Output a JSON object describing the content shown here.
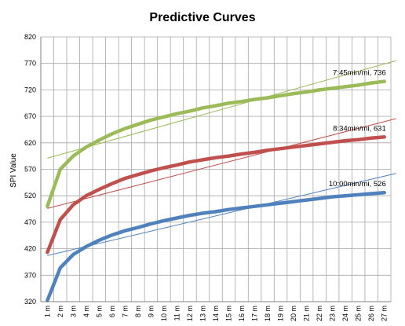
{
  "chart_data": {
    "type": "line",
    "title": "Predictive Curves",
    "xlabel": "",
    "ylabel": "SPI Value",
    "categories": [
      "1 m",
      "2 m",
      "3 m",
      "4 m",
      "5 m",
      "6 m",
      "7 m",
      "8 m",
      "9 m",
      "10 m",
      "11 m",
      "12 m",
      "13 m",
      "14 m",
      "15 m",
      "16 m",
      "17 m",
      "18 m",
      "19 m",
      "20 m",
      "21 m",
      "22 m",
      "23 m",
      "24 m",
      "25 m",
      "26 m",
      "27 m"
    ],
    "ylim": [
      320,
      820
    ],
    "yticks": [
      320,
      370,
      420,
      470,
      520,
      570,
      620,
      670,
      720,
      770,
      820
    ],
    "grid": true,
    "series": [
      {
        "color": "#9bbb59",
        "values": [
          500,
          570,
          595,
          612,
          625,
          637,
          647,
          655,
          663,
          669,
          675,
          680,
          686,
          690,
          695,
          698,
          702,
          705,
          709,
          713,
          716,
          720,
          723,
          726,
          729,
          733,
          736
        ],
        "trend": [
          591,
          769
        ],
        "annotation": "7:45min/mi, 736"
      },
      {
        "color": "#c0504d",
        "values": [
          413,
          475,
          503,
          520,
          532,
          543,
          553,
          560,
          567,
          573,
          578,
          584,
          588,
          592,
          595,
          599,
          602,
          606,
          609,
          612,
          615,
          618,
          621,
          624,
          626,
          629,
          631
        ],
        "trend": [
          496,
          660
        ],
        "annotation": "8:34min/mi, 631"
      },
      {
        "color": "#4f81bd",
        "values": [
          322,
          384,
          409,
          424,
          436,
          446,
          454,
          460,
          467,
          473,
          478,
          483,
          487,
          490,
          494,
          497,
          500,
          503,
          506,
          509,
          512,
          515,
          518,
          520,
          522,
          524,
          526
        ],
        "trend": [
          407,
          557
        ],
        "annotation": "10:00min/mi, 526"
      }
    ]
  }
}
